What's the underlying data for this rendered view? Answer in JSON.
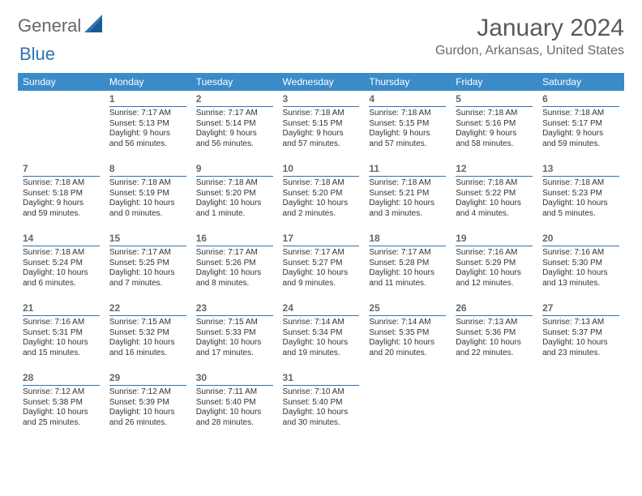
{
  "brand": {
    "general": "General",
    "blue": "Blue"
  },
  "title": "January 2024",
  "location": "Gurdon, Arkansas, United States",
  "dow": [
    "Sunday",
    "Monday",
    "Tuesday",
    "Wednesday",
    "Thursday",
    "Friday",
    "Saturday"
  ],
  "colors": {
    "header_bg": "#3b8bc9",
    "header_text": "#ffffff",
    "accent": "#2d74b5",
    "body_text": "#333333",
    "muted": "#666666"
  },
  "weeks": [
    [
      {
        "n": "",
        "sr": "",
        "ss": "",
        "d1": "",
        "d2": ""
      },
      {
        "n": "1",
        "sr": "Sunrise: 7:17 AM",
        "ss": "Sunset: 5:13 PM",
        "d1": "Daylight: 9 hours",
        "d2": "and 56 minutes."
      },
      {
        "n": "2",
        "sr": "Sunrise: 7:17 AM",
        "ss": "Sunset: 5:14 PM",
        "d1": "Daylight: 9 hours",
        "d2": "and 56 minutes."
      },
      {
        "n": "3",
        "sr": "Sunrise: 7:18 AM",
        "ss": "Sunset: 5:15 PM",
        "d1": "Daylight: 9 hours",
        "d2": "and 57 minutes."
      },
      {
        "n": "4",
        "sr": "Sunrise: 7:18 AM",
        "ss": "Sunset: 5:15 PM",
        "d1": "Daylight: 9 hours",
        "d2": "and 57 minutes."
      },
      {
        "n": "5",
        "sr": "Sunrise: 7:18 AM",
        "ss": "Sunset: 5:16 PM",
        "d1": "Daylight: 9 hours",
        "d2": "and 58 minutes."
      },
      {
        "n": "6",
        "sr": "Sunrise: 7:18 AM",
        "ss": "Sunset: 5:17 PM",
        "d1": "Daylight: 9 hours",
        "d2": "and 59 minutes."
      }
    ],
    [
      {
        "n": "7",
        "sr": "Sunrise: 7:18 AM",
        "ss": "Sunset: 5:18 PM",
        "d1": "Daylight: 9 hours",
        "d2": "and 59 minutes."
      },
      {
        "n": "8",
        "sr": "Sunrise: 7:18 AM",
        "ss": "Sunset: 5:19 PM",
        "d1": "Daylight: 10 hours",
        "d2": "and 0 minutes."
      },
      {
        "n": "9",
        "sr": "Sunrise: 7:18 AM",
        "ss": "Sunset: 5:20 PM",
        "d1": "Daylight: 10 hours",
        "d2": "and 1 minute."
      },
      {
        "n": "10",
        "sr": "Sunrise: 7:18 AM",
        "ss": "Sunset: 5:20 PM",
        "d1": "Daylight: 10 hours",
        "d2": "and 2 minutes."
      },
      {
        "n": "11",
        "sr": "Sunrise: 7:18 AM",
        "ss": "Sunset: 5:21 PM",
        "d1": "Daylight: 10 hours",
        "d2": "and 3 minutes."
      },
      {
        "n": "12",
        "sr": "Sunrise: 7:18 AM",
        "ss": "Sunset: 5:22 PM",
        "d1": "Daylight: 10 hours",
        "d2": "and 4 minutes."
      },
      {
        "n": "13",
        "sr": "Sunrise: 7:18 AM",
        "ss": "Sunset: 5:23 PM",
        "d1": "Daylight: 10 hours",
        "d2": "and 5 minutes."
      }
    ],
    [
      {
        "n": "14",
        "sr": "Sunrise: 7:18 AM",
        "ss": "Sunset: 5:24 PM",
        "d1": "Daylight: 10 hours",
        "d2": "and 6 minutes."
      },
      {
        "n": "15",
        "sr": "Sunrise: 7:17 AM",
        "ss": "Sunset: 5:25 PM",
        "d1": "Daylight: 10 hours",
        "d2": "and 7 minutes."
      },
      {
        "n": "16",
        "sr": "Sunrise: 7:17 AM",
        "ss": "Sunset: 5:26 PM",
        "d1": "Daylight: 10 hours",
        "d2": "and 8 minutes."
      },
      {
        "n": "17",
        "sr": "Sunrise: 7:17 AM",
        "ss": "Sunset: 5:27 PM",
        "d1": "Daylight: 10 hours",
        "d2": "and 9 minutes."
      },
      {
        "n": "18",
        "sr": "Sunrise: 7:17 AM",
        "ss": "Sunset: 5:28 PM",
        "d1": "Daylight: 10 hours",
        "d2": "and 11 minutes."
      },
      {
        "n": "19",
        "sr": "Sunrise: 7:16 AM",
        "ss": "Sunset: 5:29 PM",
        "d1": "Daylight: 10 hours",
        "d2": "and 12 minutes."
      },
      {
        "n": "20",
        "sr": "Sunrise: 7:16 AM",
        "ss": "Sunset: 5:30 PM",
        "d1": "Daylight: 10 hours",
        "d2": "and 13 minutes."
      }
    ],
    [
      {
        "n": "21",
        "sr": "Sunrise: 7:16 AM",
        "ss": "Sunset: 5:31 PM",
        "d1": "Daylight: 10 hours",
        "d2": "and 15 minutes."
      },
      {
        "n": "22",
        "sr": "Sunrise: 7:15 AM",
        "ss": "Sunset: 5:32 PM",
        "d1": "Daylight: 10 hours",
        "d2": "and 16 minutes."
      },
      {
        "n": "23",
        "sr": "Sunrise: 7:15 AM",
        "ss": "Sunset: 5:33 PM",
        "d1": "Daylight: 10 hours",
        "d2": "and 17 minutes."
      },
      {
        "n": "24",
        "sr": "Sunrise: 7:14 AM",
        "ss": "Sunset: 5:34 PM",
        "d1": "Daylight: 10 hours",
        "d2": "and 19 minutes."
      },
      {
        "n": "25",
        "sr": "Sunrise: 7:14 AM",
        "ss": "Sunset: 5:35 PM",
        "d1": "Daylight: 10 hours",
        "d2": "and 20 minutes."
      },
      {
        "n": "26",
        "sr": "Sunrise: 7:13 AM",
        "ss": "Sunset: 5:36 PM",
        "d1": "Daylight: 10 hours",
        "d2": "and 22 minutes."
      },
      {
        "n": "27",
        "sr": "Sunrise: 7:13 AM",
        "ss": "Sunset: 5:37 PM",
        "d1": "Daylight: 10 hours",
        "d2": "and 23 minutes."
      }
    ],
    [
      {
        "n": "28",
        "sr": "Sunrise: 7:12 AM",
        "ss": "Sunset: 5:38 PM",
        "d1": "Daylight: 10 hours",
        "d2": "and 25 minutes."
      },
      {
        "n": "29",
        "sr": "Sunrise: 7:12 AM",
        "ss": "Sunset: 5:39 PM",
        "d1": "Daylight: 10 hours",
        "d2": "and 26 minutes."
      },
      {
        "n": "30",
        "sr": "Sunrise: 7:11 AM",
        "ss": "Sunset: 5:40 PM",
        "d1": "Daylight: 10 hours",
        "d2": "and 28 minutes."
      },
      {
        "n": "31",
        "sr": "Sunrise: 7:10 AM",
        "ss": "Sunset: 5:40 PM",
        "d1": "Daylight: 10 hours",
        "d2": "and 30 minutes."
      },
      {
        "n": "",
        "sr": "",
        "ss": "",
        "d1": "",
        "d2": ""
      },
      {
        "n": "",
        "sr": "",
        "ss": "",
        "d1": "",
        "d2": ""
      },
      {
        "n": "",
        "sr": "",
        "ss": "",
        "d1": "",
        "d2": ""
      }
    ]
  ]
}
